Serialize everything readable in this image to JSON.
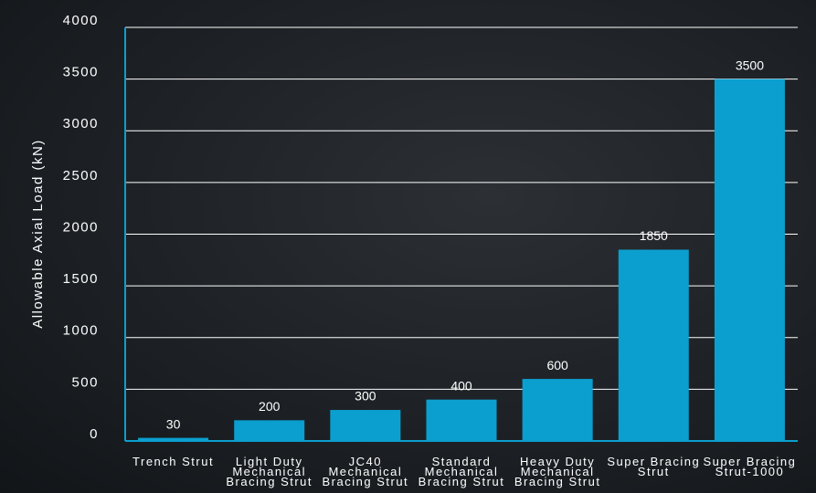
{
  "chart_data": {
    "type": "bar",
    "y_axis_label": "Allowable Axial Load (kN)",
    "categories": [
      "Trench Strut",
      "Light Duty Mechanical Bracing Strut",
      "JC40 Mechanical Bracing Strut",
      "Standard Mechanical Bracing Strut",
      "Heavy Duty Mechanical Bracing Strut",
      "Super Bracing Strut",
      "Super Bracing Strut-1000"
    ],
    "values": [
      30,
      200,
      300,
      400,
      600,
      1850,
      3500
    ],
    "color": "#0b9fcf",
    "ylim": [
      0,
      4000
    ],
    "yticks": [
      0,
      500,
      1000,
      1500,
      2000,
      2500,
      3000,
      3500,
      4000
    ],
    "grid": true
  }
}
